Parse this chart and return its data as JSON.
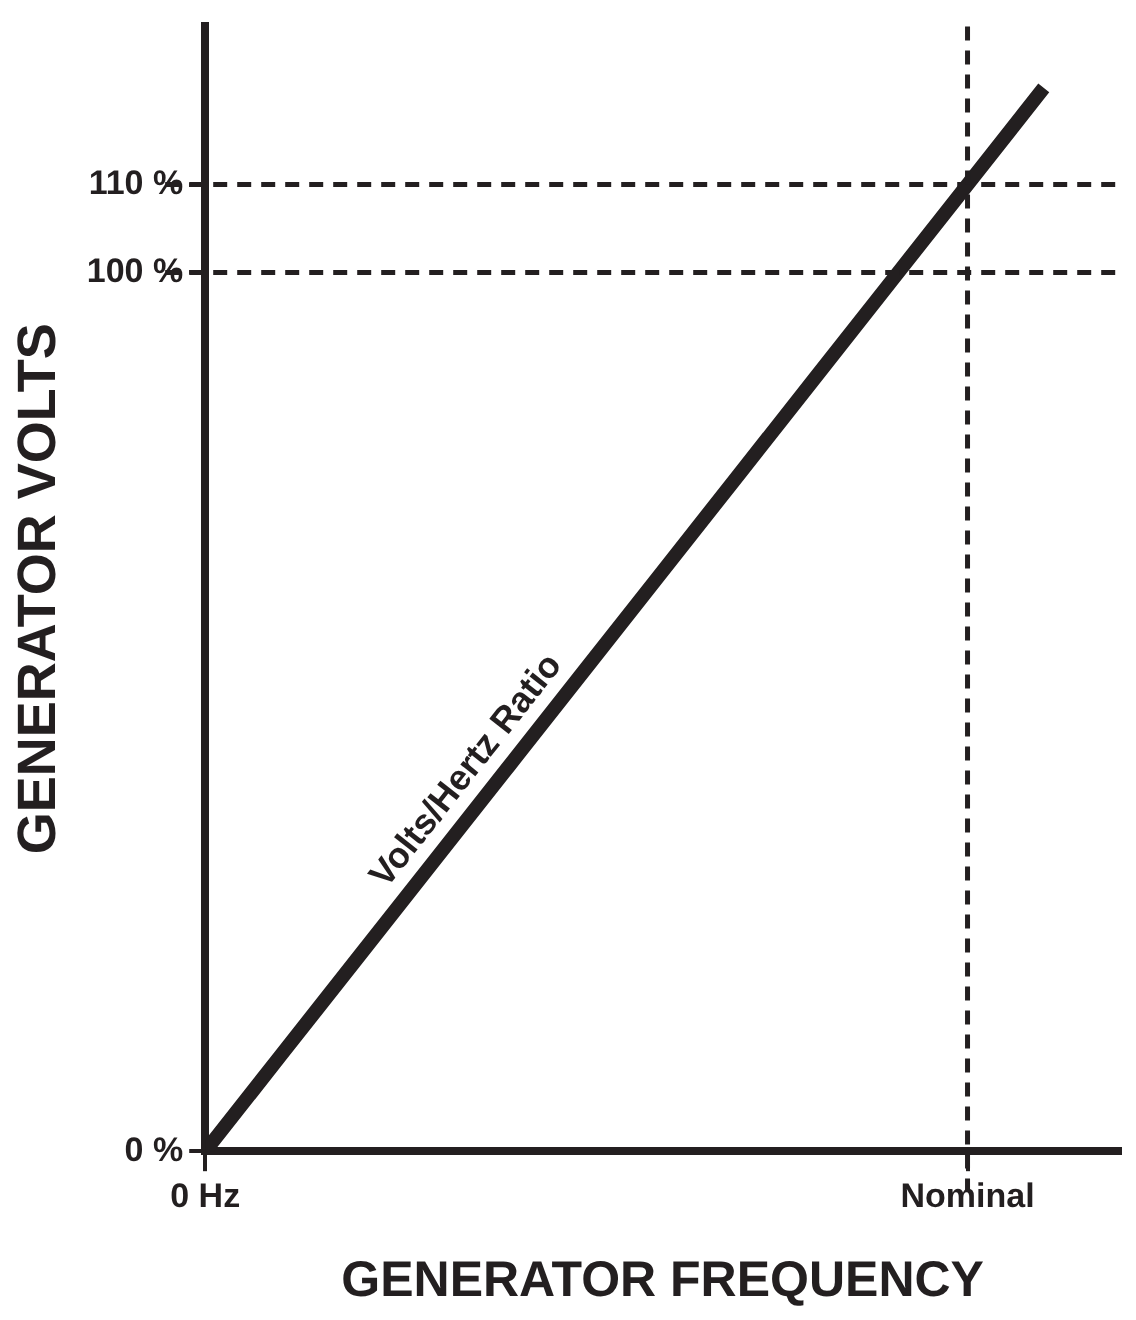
{
  "chart_data": {
    "type": "line",
    "xlabel": "GENERATOR FREQUENCY",
    "ylabel": "GENERATOR VOLTS",
    "categories": [
      "0 Hz",
      null,
      null,
      null,
      null,
      null,
      null,
      null,
      null,
      null,
      "Nominal",
      null,
      null
    ],
    "series": [
      {
        "color": "#231f20",
        "values": [
          0,
          11,
          22,
          33,
          44,
          55,
          66,
          77,
          88,
          99,
          110,
          121,
          null
        ]
      }
    ],
    "ylim": [
      0,
      128
    ],
    "yticks": [
      {
        "value": 0,
        "label": "0 %"
      },
      {
        "value": 100,
        "label": "100 %"
      },
      {
        "value": 110,
        "label": "110 %"
      }
    ],
    "ref_lines": [
      {
        "axis": "y",
        "value": 100,
        "color": "#231f20",
        "line_style": "dashed"
      },
      {
        "axis": "y",
        "value": 110,
        "color": "#231f20",
        "line_style": "dashed"
      },
      {
        "axis": "x",
        "value": "Nominal",
        "color": "#231f20",
        "line_style": "dashed"
      }
    ],
    "annotations": [
      "Volts/Hertz Ratio"
    ],
    "grid": false,
    "legend": false,
    "marker": "none",
    "line_style": "solid"
  }
}
